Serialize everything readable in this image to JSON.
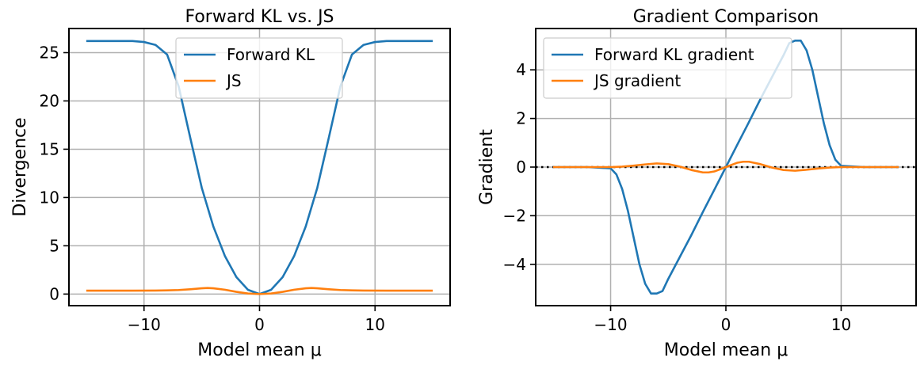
{
  "chart_data": [
    {
      "type": "line",
      "title": "Forward KL vs. JS",
      "xlabel": "Model mean μ",
      "ylabel": "Divergence",
      "xlim": [
        -16.5,
        16.5
      ],
      "ylim": [
        -1.2,
        27.5
      ],
      "xticks": [
        -10,
        0,
        10
      ],
      "xtick_labels": [
        "−10",
        "0",
        "10"
      ],
      "yticks": [
        0,
        5,
        10,
        15,
        20,
        25
      ],
      "ytick_labels": [
        "0",
        "5",
        "10",
        "15",
        "20",
        "25"
      ],
      "grid": true,
      "legend_position": "top-center",
      "series": [
        {
          "name": "Forward KL",
          "color": "#1f77b4",
          "x": [
            -15,
            -14,
            -13,
            -12,
            -11,
            -10,
            -9,
            -8,
            -7,
            -6,
            -5,
            -4,
            -3,
            -2,
            -1,
            0,
            1,
            2,
            3,
            4,
            5,
            6,
            7,
            8,
            9,
            10,
            11,
            12,
            13,
            14,
            15
          ],
          "values": [
            26.2,
            26.2,
            26.2,
            26.2,
            26.2,
            26.1,
            25.8,
            24.8,
            21.5,
            16.2,
            11.0,
            7.0,
            3.95,
            1.75,
            0.44,
            0.0,
            0.44,
            1.75,
            3.95,
            7.0,
            11.0,
            16.2,
            21.5,
            24.8,
            25.8,
            26.1,
            26.2,
            26.2,
            26.2,
            26.2,
            26.2
          ]
        },
        {
          "name": "JS",
          "color": "#ff7f0e",
          "x": [
            -15,
            -13,
            -11,
            -9,
            -8,
            -7,
            -6,
            -5,
            -4.5,
            -4,
            -3,
            -2,
            -1,
            0,
            1,
            2,
            3,
            4,
            4.5,
            5,
            6,
            7,
            8,
            9,
            11,
            13,
            15
          ],
          "values": [
            0.35,
            0.35,
            0.35,
            0.36,
            0.38,
            0.42,
            0.5,
            0.6,
            0.63,
            0.6,
            0.45,
            0.23,
            0.06,
            0.0,
            0.06,
            0.23,
            0.45,
            0.6,
            0.63,
            0.6,
            0.5,
            0.42,
            0.38,
            0.36,
            0.35,
            0.35,
            0.35
          ]
        }
      ]
    },
    {
      "type": "line",
      "title": "Gradient Comparison",
      "xlabel": "Model mean μ",
      "ylabel": "Gradient",
      "xlim": [
        -16.5,
        16.5
      ],
      "ylim": [
        -5.7,
        5.7
      ],
      "xticks": [
        -10,
        0,
        10
      ],
      "xtick_labels": [
        "−10",
        "0",
        "10"
      ],
      "yticks": [
        -4,
        -2,
        0,
        2,
        4
      ],
      "ytick_labels": [
        "−4",
        "−2",
        "0",
        "2",
        "4"
      ],
      "grid": true,
      "legend_position": "top-left",
      "reference_line": {
        "y": 0,
        "style": "dotted",
        "color": "#000000"
      },
      "series": [
        {
          "name": "Forward KL gradient",
          "color": "#1f77b4",
          "x": [
            -15,
            -12,
            -10,
            -9.5,
            -9,
            -8.5,
            -8,
            -7.5,
            -7,
            -6.5,
            -6,
            -5.5,
            -5,
            -4,
            -3,
            -2,
            -1,
            0,
            1,
            2,
            3,
            4,
            5,
            5.5,
            6,
            6.5,
            7,
            7.5,
            8,
            8.5,
            9,
            9.5,
            10,
            12,
            15
          ],
          "values": [
            0,
            0,
            -0.05,
            -0.3,
            -0.9,
            -1.8,
            -2.9,
            -4.0,
            -4.8,
            -5.2,
            -5.2,
            -5.1,
            -4.6,
            -3.7,
            -2.8,
            -1.85,
            -0.93,
            0,
            0.93,
            1.85,
            2.8,
            3.7,
            4.6,
            5.1,
            5.2,
            5.2,
            4.8,
            4.0,
            2.9,
            1.8,
            0.9,
            0.3,
            0.05,
            0,
            0
          ]
        },
        {
          "name": "JS gradient",
          "color": "#ff7f0e",
          "x": [
            -15,
            -12,
            -10,
            -9,
            -8,
            -7,
            -6,
            -5,
            -4,
            -3,
            -2,
            -1.5,
            -1,
            0,
            1,
            1.5,
            2,
            3,
            4,
            5,
            6,
            7,
            8,
            9,
            10,
            12,
            15
          ],
          "values": [
            0,
            0,
            0,
            0.02,
            0.06,
            0.11,
            0.15,
            0.12,
            0.02,
            -0.12,
            -0.22,
            -0.22,
            -0.18,
            0,
            0.18,
            0.22,
            0.22,
            0.12,
            -0.02,
            -0.12,
            -0.15,
            -0.11,
            -0.06,
            -0.02,
            0,
            0,
            0
          ]
        }
      ]
    }
  ]
}
